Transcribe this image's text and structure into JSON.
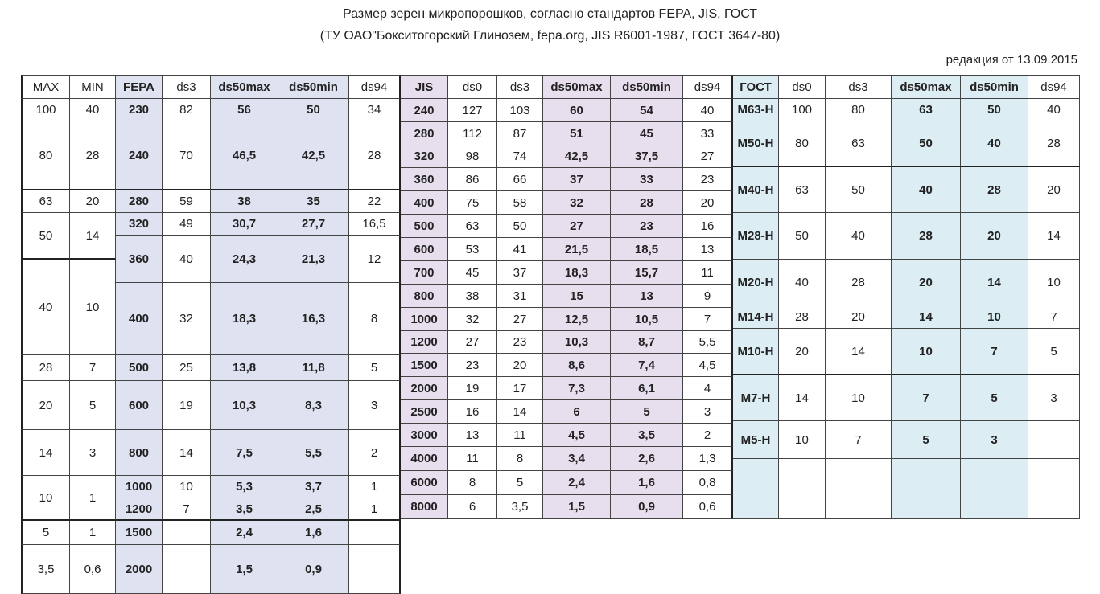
{
  "title_line1": "Размер зерен микропорошков, согласно стандартов FEPA, JIS, ГОСТ",
  "title_line2": "(ТУ ОАО\"Бокситогорский Глинозем, fepa.org, JIS R6001-1987, ГОСТ 3647-80)",
  "edition": "редакция от 13.09.2015",
  "colors": {
    "fepa": "#dfe2f1",
    "jis": "#e8dfee",
    "gost": "#dcedf3"
  },
  "headers": {
    "max": "MAX",
    "min": "MIN",
    "fepa": "FEPA",
    "f_ds3": "ds3",
    "f_ds50max": "ds50max",
    "f_ds50min": "ds50min",
    "f_ds94": "ds94",
    "jis": "JIS",
    "j_ds0": "ds0",
    "j_ds3": "ds3",
    "j_ds50max": "ds50max",
    "j_ds50min": "ds50min",
    "j_ds94": "ds94",
    "gost": "ГОСТ",
    "g_ds0": "ds0",
    "g_ds3": "ds3",
    "g_ds50max": "ds50max",
    "g_ds50min": "ds50min",
    "g_ds94": "ds94"
  },
  "mm": [
    [
      "100",
      "40"
    ],
    [
      "80",
      "28"
    ],
    [
      "63",
      "20"
    ],
    [
      "50",
      "14"
    ],
    [
      "40",
      "10"
    ],
    [
      "28",
      "7"
    ],
    [
      "20",
      "5"
    ],
    [
      "14",
      "3"
    ],
    [
      "10",
      "1"
    ],
    [
      "5",
      "1"
    ],
    [
      "3,5",
      "0,6"
    ]
  ],
  "fepa": [
    [
      "230",
      "82",
      "56",
      "50",
      "34"
    ],
    [
      "240",
      "70",
      "46,5",
      "42,5",
      "28"
    ],
    [
      "280",
      "59",
      "38",
      "35",
      "22"
    ],
    [
      "320",
      "49",
      "30,7",
      "27,7",
      "16,5"
    ],
    [
      "360",
      "40",
      "24,3",
      "21,3",
      "12"
    ],
    [
      "400",
      "32",
      "18,3",
      "16,3",
      "8"
    ],
    [
      "500",
      "25",
      "13,8",
      "11,8",
      "5"
    ],
    [
      "600",
      "19",
      "10,3",
      "8,3",
      "3"
    ],
    [
      "800",
      "14",
      "7,5",
      "5,5",
      "2"
    ],
    [
      "1000",
      "10",
      "5,3",
      "3,7",
      "1"
    ],
    [
      "1200",
      "7",
      "3,5",
      "2,5",
      "1"
    ],
    [
      "1500",
      "",
      "2,4",
      "1,6",
      ""
    ],
    [
      "2000",
      "",
      "1,5",
      "0,9",
      ""
    ]
  ],
  "jis": [
    [
      "240",
      "127",
      "103",
      "60",
      "54",
      "40"
    ],
    [
      "280",
      "112",
      "87",
      "51",
      "45",
      "33"
    ],
    [
      "320",
      "98",
      "74",
      "42,5",
      "37,5",
      "27"
    ],
    [
      "360",
      "86",
      "66",
      "37",
      "33",
      "23"
    ],
    [
      "400",
      "75",
      "58",
      "32",
      "28",
      "20"
    ],
    [
      "500",
      "63",
      "50",
      "27",
      "23",
      "16"
    ],
    [
      "600",
      "53",
      "41",
      "21,5",
      "18,5",
      "13"
    ],
    [
      "700",
      "45",
      "37",
      "18,3",
      "15,7",
      "11"
    ],
    [
      "800",
      "38",
      "31",
      "15",
      "13",
      "9"
    ],
    [
      "1000",
      "32",
      "27",
      "12,5",
      "10,5",
      "7"
    ],
    [
      "1200",
      "27",
      "23",
      "10,3",
      "8,7",
      "5,5"
    ],
    [
      "1500",
      "23",
      "20",
      "8,6",
      "7,4",
      "4,5"
    ],
    [
      "2000",
      "19",
      "17",
      "7,3",
      "6,1",
      "4"
    ],
    [
      "2500",
      "16",
      "14",
      "6",
      "5",
      "3"
    ],
    [
      "3000",
      "13",
      "11",
      "4,5",
      "3,5",
      "2"
    ],
    [
      "4000",
      "11",
      "8",
      "3,4",
      "2,6",
      "1,3"
    ],
    [
      "6000",
      "8",
      "5",
      "2,4",
      "1,6",
      "0,8"
    ],
    [
      "8000",
      "6",
      "3,5",
      "1,5",
      "0,9",
      "0,6"
    ]
  ],
  "gost": [
    [
      "М63-Н",
      "100",
      "80",
      "63",
      "50",
      "40"
    ],
    [
      "М50-Н",
      "80",
      "63",
      "50",
      "40",
      "28"
    ],
    [
      "М40-Н",
      "63",
      "50",
      "40",
      "28",
      "20"
    ],
    [
      "М28-Н",
      "50",
      "40",
      "28",
      "20",
      "14"
    ],
    [
      "М20-Н",
      "40",
      "28",
      "20",
      "14",
      "10"
    ],
    [
      "М14-Н",
      "28",
      "20",
      "14",
      "10",
      "7"
    ],
    [
      "М10-Н",
      "20",
      "14",
      "10",
      "7",
      "5"
    ],
    [
      "М7-Н",
      "14",
      "10",
      "7",
      "5",
      "3"
    ],
    [
      "М5-Н",
      "10",
      "7",
      "5",
      "3",
      ""
    ]
  ]
}
